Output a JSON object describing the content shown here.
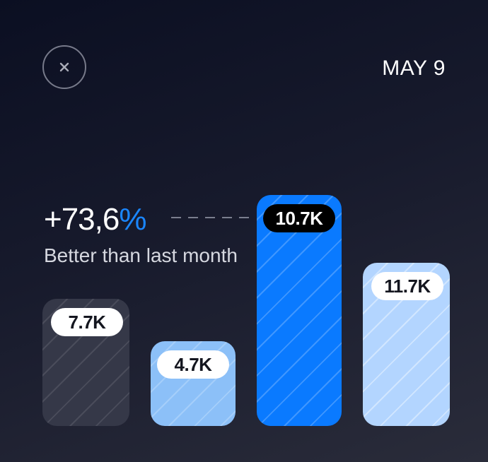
{
  "header": {
    "close_icon": "close-icon",
    "date": "MAY 9"
  },
  "stat": {
    "value": "+73,6",
    "unit": "%",
    "caption": "Better than last month"
  },
  "colors": {
    "accent": "#1a86ff",
    "bar_dark": "#353848",
    "bar_light_blue": "#8cc0f8",
    "bar_blue": "#0a7aff",
    "bar_pale_blue": "#b3d5ff"
  },
  "chart_data": {
    "type": "bar",
    "labels": [
      "7.7K",
      "4.7K",
      "10.7K",
      "11.7K"
    ],
    "values": [
      7.7,
      4.7,
      10.7,
      11.7
    ],
    "highlighted_index": 2
  }
}
